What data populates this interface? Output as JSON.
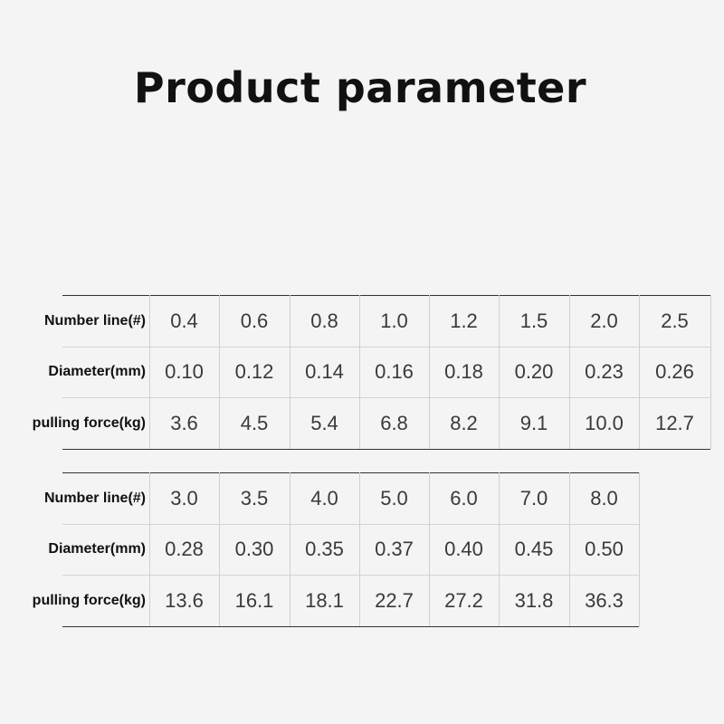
{
  "title": "Product parameter",
  "tables": [
    {
      "row_labels": [
        "Number line(#)",
        "Diameter(mm)",
        "pulling force(kg)"
      ],
      "rows": [
        [
          "0.4",
          "0.6",
          "0.8",
          "1.0",
          "1.2",
          "1.5",
          "2.0",
          "2.5"
        ],
        [
          "0.10",
          "0.12",
          "0.14",
          "0.16",
          "0.18",
          "0.20",
          "0.23",
          "0.26"
        ],
        [
          "3.6",
          "4.5",
          "5.4",
          "6.8",
          "8.2",
          "9.1",
          "10.0",
          "12.7"
        ]
      ]
    },
    {
      "row_labels": [
        "Number line(#)",
        "Diameter(mm)",
        "pulling force(kg)"
      ],
      "rows": [
        [
          "3.0",
          "3.5",
          "4.0",
          "5.0",
          "6.0",
          "7.0",
          "8.0"
        ],
        [
          "0.28",
          "0.30",
          "0.35",
          "0.37",
          "0.40",
          "0.45",
          "0.50"
        ],
        [
          "13.6",
          "16.1",
          "18.1",
          "22.7",
          "27.2",
          "31.8",
          "36.3"
        ]
      ]
    }
  ]
}
